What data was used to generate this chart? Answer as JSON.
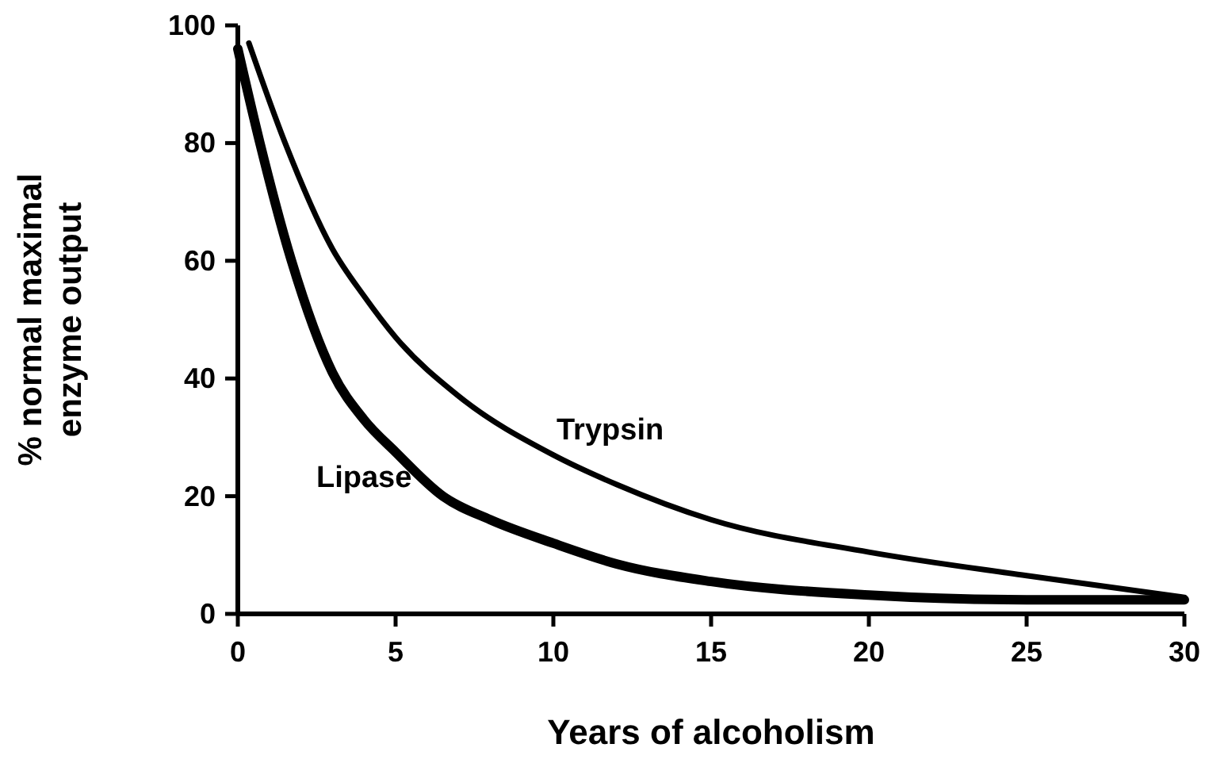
{
  "chart_data": {
    "type": "line",
    "xlabel": "Years of alcoholism",
    "ylabel": "% normal maximal enzyme output",
    "xlim": [
      0,
      30
    ],
    "xticks": [
      0,
      5,
      10,
      15,
      20,
      25,
      30
    ],
    "ylim": [
      0,
      100
    ],
    "yticks": [
      0,
      20,
      40,
      60,
      80,
      100
    ],
    "grid": false,
    "legend": false,
    "marker": "none",
    "line_style": "solid",
    "series": [
      {
        "name": "Lipase",
        "color": "#000000",
        "x": [
          0,
          0.7,
          1.7,
          3,
          4,
          5,
          6.5,
          8,
          10,
          12,
          15,
          20,
          25,
          30
        ],
        "values": [
          96,
          80,
          60,
          41,
          33,
          27.5,
          20,
          16,
          12,
          8.5,
          5.5,
          3.2,
          2.4,
          2.4
        ]
      },
      {
        "name": "Trypsin",
        "color": "#000000",
        "x": [
          0.35,
          1.5,
          3,
          4,
          5,
          7,
          10,
          12,
          15,
          20,
          25,
          30
        ],
        "values": [
          97,
          80,
          62,
          54,
          47,
          37,
          27,
          22,
          16,
          10.5,
          6.5,
          2.8
        ]
      }
    ]
  }
}
